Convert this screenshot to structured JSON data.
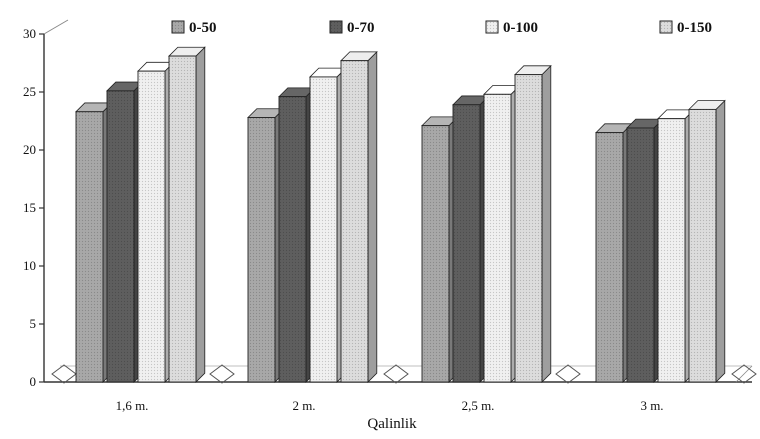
{
  "chart_data": {
    "type": "bar",
    "title": "",
    "xlabel": "Qalinlik",
    "ylabel": "",
    "categories": [
      "1,6 m.",
      "2 m.",
      "2,5 m.",
      "3 m."
    ],
    "ylim": [
      0,
      30
    ],
    "yticks": [
      0,
      5,
      10,
      15,
      20,
      25,
      30
    ],
    "grid": false,
    "legend_position": "top",
    "three_d": true,
    "series": [
      {
        "name": "0-50",
        "values": [
          23.3,
          22.8,
          22.1,
          21.5
        ],
        "color": "#a8a8a8"
      },
      {
        "name": "0-70",
        "values": [
          25.1,
          24.6,
          23.9,
          21.9
        ],
        "color": "#5e5e5e"
      },
      {
        "name": "0-100",
        "values": [
          26.8,
          26.3,
          24.8,
          22.7
        ],
        "color": "#f0f0f0"
      },
      {
        "name": "0-150",
        "values": [
          28.1,
          27.7,
          26.5,
          23.5
        ],
        "color": "#dcdcdc"
      }
    ]
  }
}
